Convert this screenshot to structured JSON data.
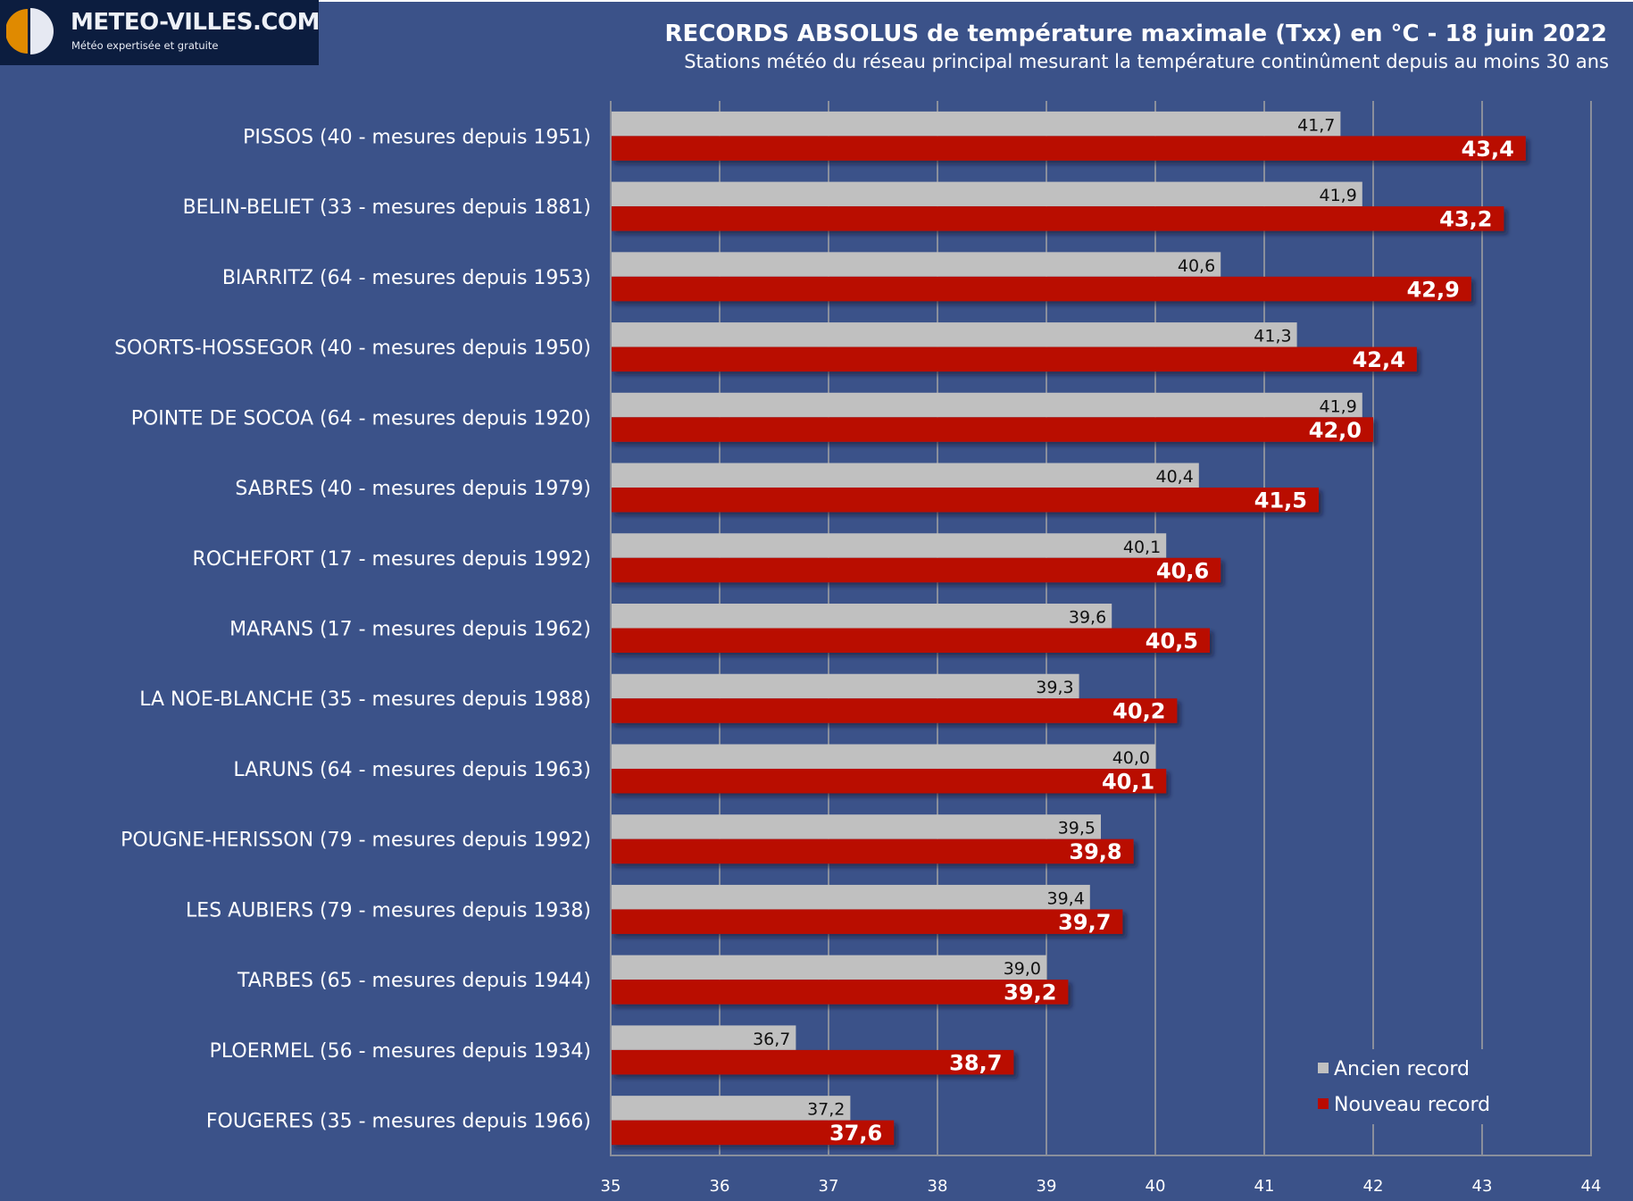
{
  "logo": {
    "name": "METEO-VILLES.COM",
    "tagline": "Météo expertisée et gratuite"
  },
  "colors": {
    "background": "#3b5289",
    "ancien": "#c0c0c0",
    "nouveau": "#b90a00",
    "gridline": "#8a8f9c",
    "logo_orange": "#e08a00",
    "logo_white": "#e6e9f2",
    "logo_bg": "#0c1d3f"
  },
  "chart_data": {
    "type": "bar",
    "orientation": "horizontal",
    "title": "RECORDS ABSOLUS de température maximale (Txx) en °C - 18 juin 2022",
    "subtitle": "Stations météo du réseau principal mesurant la température continûment depuis au moins 30 ans",
    "xlabel": "",
    "ylabel": "",
    "xlim": [
      35,
      44
    ],
    "x_ticks": [
      "35",
      "36",
      "37",
      "38",
      "39",
      "40",
      "41",
      "42",
      "43",
      "44"
    ],
    "grid": true,
    "legend_position": "bottom-right",
    "categories": [
      "PISSOS (40 - mesures depuis 1951)",
      "BELIN-BELIET (33 - mesures depuis 1881)",
      "BIARRITZ (64 - mesures depuis 1953)",
      "SOORTS-HOSSEGOR (40 - mesures depuis 1950)",
      "POINTE DE SOCOA (64 - mesures depuis 1920)",
      "SABRES (40 - mesures depuis 1979)",
      "ROCHEFORT (17 - mesures depuis 1992)",
      "MARANS (17 - mesures depuis 1962)",
      "LA NOE-BLANCHE (35 - mesures depuis 1988)",
      "LARUNS (64 - mesures depuis 1963)",
      "POUGNE-HERISSON (79 - mesures depuis 1992)",
      "LES AUBIERS (79 - mesures depuis 1938)",
      "TARBES (65 - mesures depuis 1944)",
      "PLOERMEL (56 - mesures depuis 1934)",
      "FOUGERES (35 - mesures depuis 1966)"
    ],
    "series": [
      {
        "name": "Ancien record",
        "color": "#c0c0c0",
        "values": [
          41.7,
          41.9,
          40.6,
          41.3,
          41.9,
          40.4,
          40.1,
          39.6,
          39.3,
          40.0,
          39.5,
          39.4,
          39.0,
          36.7,
          37.2
        ],
        "labels": [
          "41,7",
          "41,9",
          "40,6",
          "41,3",
          "41,9",
          "40,4",
          "40,1",
          "39,6",
          "39,3",
          "40,0",
          "39,5",
          "39,4",
          "39,0",
          "36,7",
          "37,2"
        ]
      },
      {
        "name": "Nouveau record",
        "color": "#b90a00",
        "values": [
          43.4,
          43.2,
          42.9,
          42.4,
          42.0,
          41.5,
          40.6,
          40.5,
          40.2,
          40.1,
          39.8,
          39.7,
          39.2,
          38.7,
          37.6
        ],
        "labels": [
          "43,4",
          "43,2",
          "42,9",
          "42,4",
          "42,0",
          "41,5",
          "40,6",
          "40,5",
          "40,2",
          "40,1",
          "39,8",
          "39,7",
          "39,2",
          "38,7",
          "37,6"
        ]
      }
    ]
  }
}
